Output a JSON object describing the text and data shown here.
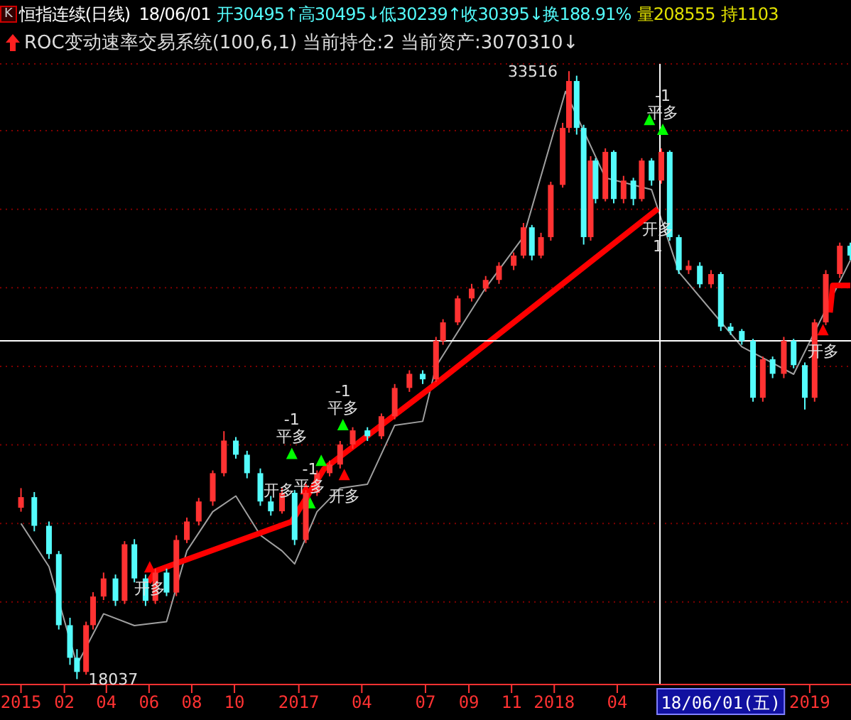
{
  "chart_data": {
    "type": "candlestick",
    "title": "恒指连续(日线)",
    "subtitle": "18/06/01 开30495↑高30495↓低30239↑收30395↓换188.91% 量208555 持1103",
    "annotations": [
      "K",
      "ROC变动速率交易系统(100,6,1) 当前持仓:2 当前资产:3070310↓",
      {
        "text": "33516",
        "x": "2018-01-22",
        "y": 33516
      },
      {
        "text": "18037",
        "x": "2016-02-19",
        "y": 18037
      },
      {
        "text": "开多",
        "x": "2016-06-02",
        "y": 20860
      },
      {
        "text": "-1\n平多",
        "x": "2016-12-22",
        "y": 23750
      },
      {
        "text": "-1\n平多",
        "x": "2017-01-17",
        "y": 22490
      },
      {
        "text": "-1\n平多",
        "x": "2017-03-05",
        "y": 24480
      },
      {
        "text": "开多",
        "x": "2017-01-11",
        "y": 22850
      },
      {
        "text": "开多",
        "x": "2017-03-07",
        "y": 23210
      },
      {
        "text": "-1\n平多",
        "x": "2018-06-05",
        "y": 32000
      },
      {
        "text": "开多\n1",
        "x": "2018-05-29",
        "y": 30010
      },
      {
        "text": "开多",
        "x": "2019-01-20",
        "y": 26900
      }
    ],
    "xlim": [
      "2015-11-01",
      "2019-03-01"
    ],
    "xticks": [
      {
        "value": "2015-12-01",
        "label": "2015"
      },
      {
        "value": "2016-02-01",
        "label": "02"
      },
      {
        "value": "2016-04-01",
        "label": "04"
      },
      {
        "value": "2016-06-01",
        "label": "06"
      },
      {
        "value": "2016-08-01",
        "label": "08"
      },
      {
        "value": "2016-10-01",
        "label": "10"
      },
      {
        "value": "2017-01-01",
        "label": "2017"
      },
      {
        "value": "2017-04-01",
        "label": "04"
      },
      {
        "value": "2017-07-01",
        "label": "07"
      },
      {
        "value": "2017-09-01",
        "label": "09"
      },
      {
        "value": "2017-11-01",
        "label": "11"
      },
      {
        "value": "2018-01-01",
        "label": "2018"
      },
      {
        "value": "2018-04-01",
        "label": "04"
      },
      {
        "value": "2019-01-01",
        "label": "2019"
      }
    ],
    "ylim": [
      17900,
      33700
    ],
    "yticks": [
      {
        "value": 20000,
        "label": null
      },
      {
        "value": 22000,
        "label": null
      },
      {
        "value": 24000,
        "label": null
      },
      {
        "value": 26000,
        "label": null
      },
      {
        "value": 28000,
        "label": null
      },
      {
        "value": 30000,
        "label": null
      },
      {
        "value": 32000,
        "label": null
      }
    ],
    "grid": "y",
    "tick_labels": "x",
    "ref_lines": [
      {
        "axis": "y",
        "value": 26650,
        "color": "#ffffff"
      },
      {
        "axis": "x",
        "value": "2018-06-01",
        "label": "18/06/01(五)",
        "color": "#ffffff"
      }
    ],
    "x": [
      "2015-12-01",
      "2015-12-20",
      "2016-01-10",
      "2016-01-24",
      "2016-02-09",
      "2016-02-19",
      "2016-03-03",
      "2016-03-13",
      "2016-03-28",
      "2016-04-14",
      "2016-04-27",
      "2016-05-11",
      "2016-05-27",
      "2016-06-10",
      "2016-06-26",
      "2016-07-10",
      "2016-07-25",
      "2016-08-11",
      "2016-08-31",
      "2016-09-16",
      "2016-10-03",
      "2016-10-19",
      "2016-11-07",
      "2016-11-22",
      "2016-12-08",
      "2016-12-26",
      "2017-01-11",
      "2017-01-27",
      "2017-02-14",
      "2017-03-01",
      "2017-03-19",
      "2017-04-09",
      "2017-04-29",
      "2017-05-18",
      "2017-06-08",
      "2017-06-27",
      "2017-07-16",
      "2017-07-26",
      "2017-08-16",
      "2017-09-05",
      "2017-09-25",
      "2017-10-14",
      "2017-11-04",
      "2017-11-18",
      "2017-11-30",
      "2017-12-13",
      "2017-12-27",
      "2018-01-13",
      "2018-01-22",
      "2018-02-02",
      "2018-02-12",
      "2018-02-22",
      "2018-03-01",
      "2018-03-15",
      "2018-03-27",
      "2018-04-10",
      "2018-04-24",
      "2018-05-06",
      "2018-05-20",
      "2018-06-03",
      "2018-06-15",
      "2018-06-28",
      "2018-07-12",
      "2018-07-28",
      "2018-08-13",
      "2018-08-27",
      "2018-09-10",
      "2018-09-26",
      "2018-10-12",
      "2018-10-26",
      "2018-11-09",
      "2018-11-25",
      "2018-12-09",
      "2018-12-25",
      "2019-01-08",
      "2019-01-24",
      "2019-02-13",
      "2019-02-28"
    ],
    "ohlc": [
      [
        22400,
        22900,
        22300,
        22670
      ],
      [
        22670,
        22800,
        21800,
        21940
      ],
      [
        21940,
        22050,
        21100,
        21220
      ],
      [
        21220,
        21300,
        19300,
        19410
      ],
      [
        19410,
        19600,
        18400,
        18580
      ],
      [
        18580,
        18800,
        18037,
        18220
      ],
      [
        18220,
        19500,
        18150,
        19410
      ],
      [
        19410,
        20250,
        19300,
        20140
      ],
      [
        20140,
        20750,
        20050,
        20600
      ],
      [
        20600,
        20700,
        19900,
        20030
      ],
      [
        20030,
        21550,
        19950,
        21470
      ],
      [
        21470,
        21600,
        20500,
        20600
      ],
      [
        20600,
        20700,
        19900,
        20030
      ],
      [
        20030,
        20850,
        19950,
        20750
      ],
      [
        20750,
        20850,
        20150,
        20240
      ],
      [
        20240,
        21700,
        20150,
        21580
      ],
      [
        21580,
        22150,
        21500,
        22050
      ],
      [
        22050,
        22650,
        21950,
        22560
      ],
      [
        22560,
        23350,
        22450,
        23280
      ],
      [
        23280,
        24350,
        23200,
        24110
      ],
      [
        24110,
        24200,
        23650,
        23750
      ],
      [
        23750,
        23850,
        23150,
        23280
      ],
      [
        23280,
        23400,
        22450,
        22560
      ],
      [
        22560,
        22700,
        22200,
        22310
      ],
      [
        22310,
        22900,
        22250,
        22780
      ],
      [
        22780,
        22850,
        21450,
        21580
      ],
      [
        21580,
        22850,
        21500,
        22780
      ],
      [
        22780,
        23350,
        22700,
        23280
      ],
      [
        23280,
        23600,
        23200,
        23500
      ],
      [
        23500,
        24100,
        23400,
        24010
      ],
      [
        24010,
        24450,
        23900,
        24370
      ],
      [
        24370,
        24450,
        24100,
        24220
      ],
      [
        24220,
        24800,
        24150,
        24730
      ],
      [
        24730,
        25550,
        24650,
        25450
      ],
      [
        25450,
        25900,
        25350,
        25810
      ],
      [
        25810,
        25900,
        25550,
        25670
      ],
      [
        25670,
        26750,
        25600,
        26650
      ],
      [
        26650,
        27200,
        26550,
        27120
      ],
      [
        27120,
        27800,
        27050,
        27730
      ],
      [
        27730,
        28100,
        27650,
        27980
      ],
      [
        27980,
        28300,
        27900,
        28200
      ],
      [
        28200,
        28650,
        28100,
        28560
      ],
      [
        28560,
        28900,
        28450,
        28820
      ],
      [
        28820,
        29650,
        28750,
        29540
      ],
      [
        29540,
        29600,
        28700,
        28820
      ],
      [
        28820,
        29400,
        28750,
        29290
      ],
      [
        29290,
        30700,
        29200,
        30620
      ],
      [
        30620,
        32200,
        30550,
        32070
      ],
      [
        32070,
        33516,
        31950,
        33265
      ],
      [
        33265,
        33400,
        31900,
        32070
      ],
      [
        32070,
        32150,
        29100,
        29290
      ],
      [
        29290,
        31350,
        29200,
        31240
      ],
      [
        31240,
        31300,
        30150,
        30260
      ],
      [
        30260,
        31550,
        30200,
        31460
      ],
      [
        31460,
        31500,
        30150,
        30260
      ],
      [
        30260,
        30850,
        30150,
        30730
      ],
      [
        30730,
        30800,
        30100,
        30260
      ],
      [
        30260,
        31300,
        30200,
        31240
      ],
      [
        31240,
        31300,
        30600,
        30730
      ],
      [
        30730,
        31550,
        30650,
        31460
      ],
      [
        31460,
        31500,
        29200,
        29290
      ],
      [
        29290,
        29350,
        28350,
        28450
      ],
      [
        28450,
        28700,
        28350,
        28560
      ],
      [
        28560,
        28650,
        28000,
        28090
      ],
      [
        28090,
        28450,
        28000,
        28350
      ],
      [
        28350,
        28400,
        26900,
        27010
      ],
      [
        27010,
        27100,
        26800,
        26900
      ],
      [
        26900,
        26950,
        26550,
        26650
      ],
      [
        26650,
        26700,
        25100,
        25200
      ],
      [
        25200,
        26250,
        25100,
        26180
      ],
      [
        26180,
        26250,
        25700,
        25810
      ],
      [
        25810,
        26750,
        25700,
        26650
      ],
      [
        26650,
        26700,
        25950,
        26030
      ],
      [
        26030,
        26100,
        24900,
        25200
      ],
      [
        25200,
        27200,
        25100,
        27120
      ],
      [
        27120,
        28450,
        27050,
        28350
      ],
      [
        28350,
        29150,
        28250,
        29070
      ],
      [
        29070,
        29150,
        28700,
        28820
      ]
    ],
    "colors": [
      "#ff3232",
      "#54fcfc",
      "#54fcfc",
      "#54fcfc",
      "#54fcfc",
      "#54fcfc",
      "#ff3232",
      "#ff3232",
      "#ff3232",
      "#54fcfc",
      "#ff3232",
      "#54fcfc",
      "#54fcfc",
      "#ff3232",
      "#54fcfc",
      "#ff3232",
      "#ff3232",
      "#ff3232",
      "#ff3232",
      "#ff3232",
      "#54fcfc",
      "#54fcfc",
      "#54fcfc",
      "#54fcfc",
      "#ff3232",
      "#54fcfc",
      "#ff3232",
      "#ff3232",
      "#ff3232",
      "#ff3232",
      "#ff3232",
      "#54fcfc",
      "#ff3232",
      "#ff3232",
      "#ff3232",
      "#54fcfc",
      "#ff3232",
      "#ff3232",
      "#ff3232",
      "#ff3232",
      "#ff3232",
      "#ff3232",
      "#ff3232",
      "#ff3232",
      "#54fcfc",
      "#ff3232",
      "#ff3232",
      "#ff3232",
      "#ff3232",
      "#54fcfc",
      "#54fcfc",
      "#ff3232",
      "#54fcfc",
      "#ff3232",
      "#54fcfc",
      "#ff3232",
      "#54fcfc",
      "#ff3232",
      "#54fcfc",
      "#ff3232",
      "#54fcfc",
      "#54fcfc",
      "#ff3232",
      "#54fcfc",
      "#ff3232",
      "#54fcfc",
      "#54fcfc",
      "#54fcfc",
      "#54fcfc",
      "#ff3232",
      "#54fcfc",
      "#ff3232",
      "#54fcfc",
      "#54fcfc",
      "#ff3232",
      "#ff3232",
      "#ff3232",
      "#54fcfc"
    ],
    "series": [
      {
        "type": "line",
        "color": "#a0a0a0",
        "x": [
          "2015-12-01",
          "2016-01-10",
          "2016-02-19",
          "2016-03-28",
          "2016-05-11",
          "2016-06-26",
          "2016-07-25",
          "2016-08-31",
          "2016-10-03",
          "2016-11-07",
          "2016-12-08",
          "2016-12-26",
          "2017-01-27",
          "2017-03-01",
          "2017-04-09",
          "2017-05-18",
          "2017-06-27",
          "2017-07-16",
          "2017-09-25",
          "2017-11-18",
          "2018-01-17",
          "2018-03-15",
          "2018-05-20",
          "2018-06-28",
          "2018-09-26",
          "2018-12-09",
          "2019-02-28"
        ],
        "values": [
          22000,
          20900,
          18400,
          19700,
          19400,
          19500,
          21300,
          22300,
          22700,
          21700,
          21300,
          20970,
          22300,
          22900,
          23000,
          24500,
          24600,
          26000,
          28000,
          29300,
          33000,
          30800,
          30500,
          28400,
          26500,
          25800,
          28700
        ]
      },
      {
        "type": "line",
        "color": "#ff0000",
        "x": [
          "2016-05-31",
          "2016-06-10",
          "2016-12-22",
          "2017-02-06",
          "2017-07-16",
          "2018-05-29"
        ],
        "values": [
          20500,
          20790,
          22050,
          23390,
          25560,
          30010
        ]
      },
      {
        "type": "line",
        "color": "#ff0000",
        "x": [
          "2019-01-30",
          "2019-02-03",
          "2019-02-28"
        ],
        "values": [
          27370,
          28060,
          28060
        ]
      },
      {
        "type": "scatter",
        "color": "#00ff00",
        "marker": "triangle",
        "x": [
          "2016-12-22",
          "2017-01-17",
          "2017-02-02",
          "2017-03-05",
          "2018-05-17",
          "2018-06-05"
        ],
        "values": [
          23750,
          22490,
          23570,
          24480,
          32250,
          32000
        ]
      },
      {
        "type": "scatter",
        "color": "#ff0000",
        "marker": "triangle",
        "x": [
          "2016-06-02",
          "2017-01-11",
          "2017-03-07",
          "2019-01-20"
        ],
        "values": [
          20860,
          22850,
          23210,
          26900
        ]
      }
    ]
  }
}
